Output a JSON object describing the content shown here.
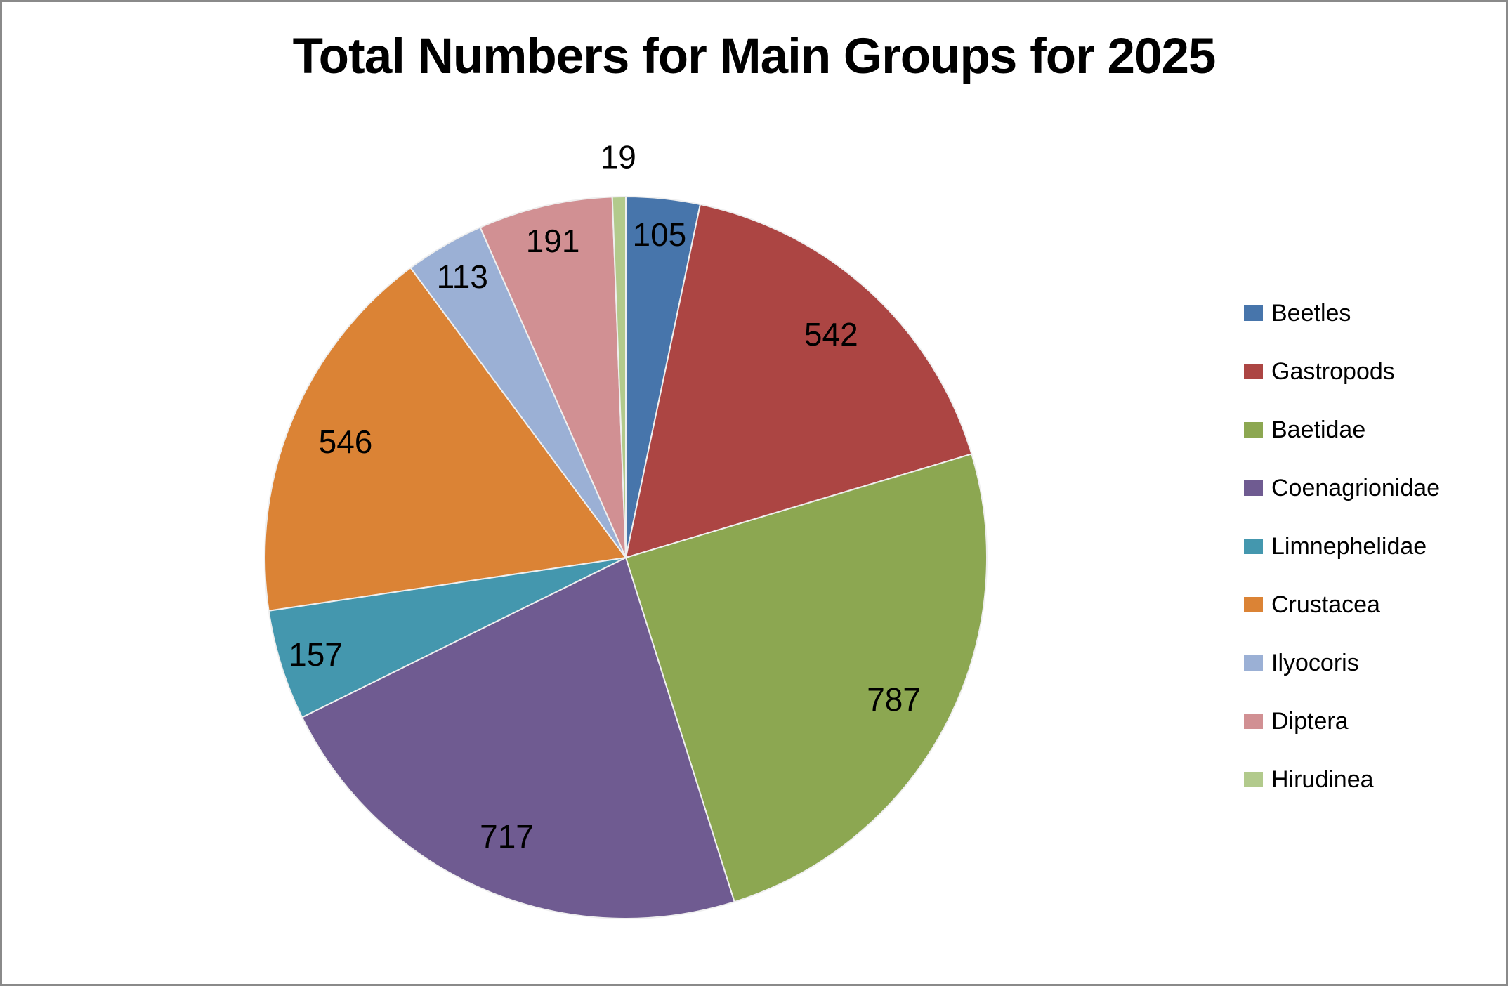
{
  "frame": {
    "border_color": "#8a8a8a",
    "background": "#ffffff"
  },
  "chart_data": {
    "type": "pie",
    "title": "Total Numbers for Main Groups for 2025",
    "categories": [
      "Beetles",
      "Gastropods",
      "Baetidae",
      "Coenagrionidae",
      "Limnephelidae",
      "Crustacea",
      "Ilyocoris",
      "Diptera",
      "Hirudinea"
    ],
    "values": [
      105,
      542,
      787,
      717,
      157,
      546,
      113,
      191,
      19
    ],
    "colors": [
      "#4775AB",
      "#AC4543",
      "#8CA751",
      "#6F5B91",
      "#4497AE",
      "#DB8335",
      "#9BB0D5",
      "#D19093",
      "#B2CA8C"
    ],
    "data_labels": [
      105,
      542,
      787,
      717,
      157,
      546,
      113,
      191,
      19
    ],
    "data_label_style": "value",
    "label_color": "#000000",
    "title_color": "#000000",
    "slice_border_color": "#efefef",
    "start_angle_deg": 0,
    "direction": "clockwise",
    "legend_position": "right",
    "grid": "off"
  }
}
